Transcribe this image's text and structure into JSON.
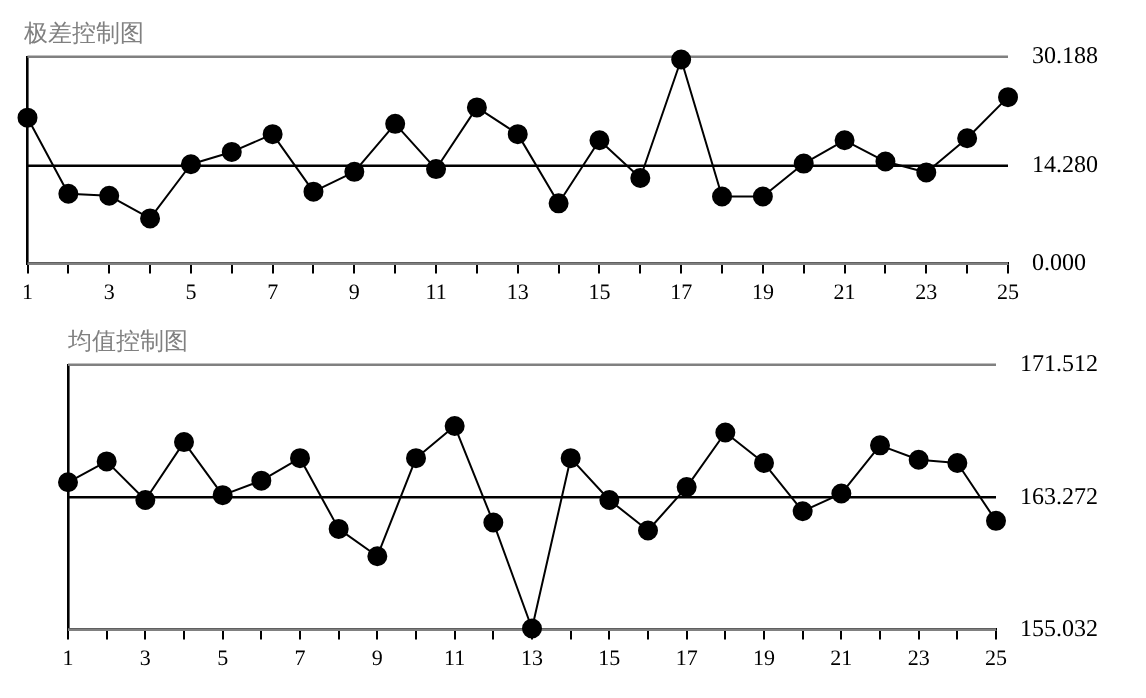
{
  "chart_data": [
    {
      "type": "line",
      "title": "极差控制图",
      "marker": "circle",
      "x": [
        1,
        2,
        3,
        4,
        5,
        6,
        7,
        8,
        9,
        10,
        11,
        12,
        13,
        14,
        15,
        16,
        17,
        18,
        19,
        20,
        21,
        22,
        23,
        24,
        25
      ],
      "series": [
        {
          "color": "#000000",
          "values": [
            21.3,
            10.2,
            9.9,
            6.6,
            14.5,
            16.3,
            18.9,
            10.5,
            13.4,
            20.4,
            13.8,
            22.8,
            18.9,
            8.8,
            18.0,
            12.5,
            29.8,
            9.8,
            9.8,
            14.6,
            18.0,
            14.9,
            13.3,
            18.3,
            24.3
          ]
        }
      ],
      "xlim": [
        1,
        25
      ],
      "xticks": [
        1,
        {
          "value": 2,
          "label": null
        },
        3,
        {
          "value": 4,
          "label": null
        },
        5,
        {
          "value": 6,
          "label": null
        },
        7,
        {
          "value": 8,
          "label": null
        },
        9,
        {
          "value": 10,
          "label": null
        },
        11,
        {
          "value": 12,
          "label": null
        },
        13,
        {
          "value": 14,
          "label": null
        },
        15,
        {
          "value": 16,
          "label": null
        },
        17,
        {
          "value": 18,
          "label": null
        },
        19,
        {
          "value": 20,
          "label": null
        },
        21,
        {
          "value": 22,
          "label": null
        },
        23,
        {
          "value": 24,
          "label": null
        },
        25
      ],
      "ylim": [
        0,
        30.188
      ],
      "yticks": [
        {
          "value": 0,
          "label": "0.000"
        },
        {
          "value": 14.28,
          "label": "14.280"
        },
        30.188
      ],
      "ref_lines": [
        {
          "axis": "y",
          "value": 30.188,
          "color": "#808080"
        },
        {
          "axis": "y",
          "value": 14.28,
          "color": "#000000"
        },
        {
          "axis": "y",
          "value": 0,
          "color": "#808080"
        }
      ]
    },
    {
      "type": "line",
      "title": "均值控制图",
      "marker": "circle",
      "x": [
        1,
        2,
        3,
        4,
        5,
        6,
        7,
        8,
        9,
        10,
        11,
        12,
        13,
        14,
        15,
        16,
        17,
        18,
        19,
        20,
        21,
        22,
        23,
        24,
        25
      ],
      "series": [
        {
          "color": "#000000",
          "values": [
            164.2,
            165.5,
            163.1,
            166.7,
            163.4,
            164.3,
            165.7,
            161.3,
            159.6,
            165.7,
            167.7,
            161.7,
            155.1,
            165.7,
            163.1,
            161.2,
            163.9,
            167.3,
            165.4,
            162.4,
            163.5,
            166.5,
            165.6,
            165.4,
            161.8
          ]
        }
      ],
      "xlim": [
        1,
        25
      ],
      "xticks": [
        1,
        {
          "value": 2,
          "label": null
        },
        3,
        {
          "value": 4,
          "label": null
        },
        5,
        {
          "value": 6,
          "label": null
        },
        7,
        {
          "value": 8,
          "label": null
        },
        9,
        {
          "value": 10,
          "label": null
        },
        11,
        {
          "value": 12,
          "label": null
        },
        13,
        {
          "value": 14,
          "label": null
        },
        15,
        {
          "value": 16,
          "label": null
        },
        17,
        {
          "value": 18,
          "label": null
        },
        19,
        {
          "value": 20,
          "label": null
        },
        21,
        {
          "value": 22,
          "label": null
        },
        23,
        {
          "value": 24,
          "label": null
        },
        25
      ],
      "ylim": [
        155.032,
        171.512
      ],
      "yticks": [
        155.032,
        163.272,
        171.512
      ],
      "ref_lines": [
        {
          "axis": "y",
          "value": 171.512,
          "color": "#808080"
        },
        {
          "axis": "y",
          "value": 163.272,
          "color": "#000000"
        },
        {
          "axis": "y",
          "value": 155.032,
          "color": "#808080"
        }
      ]
    }
  ]
}
